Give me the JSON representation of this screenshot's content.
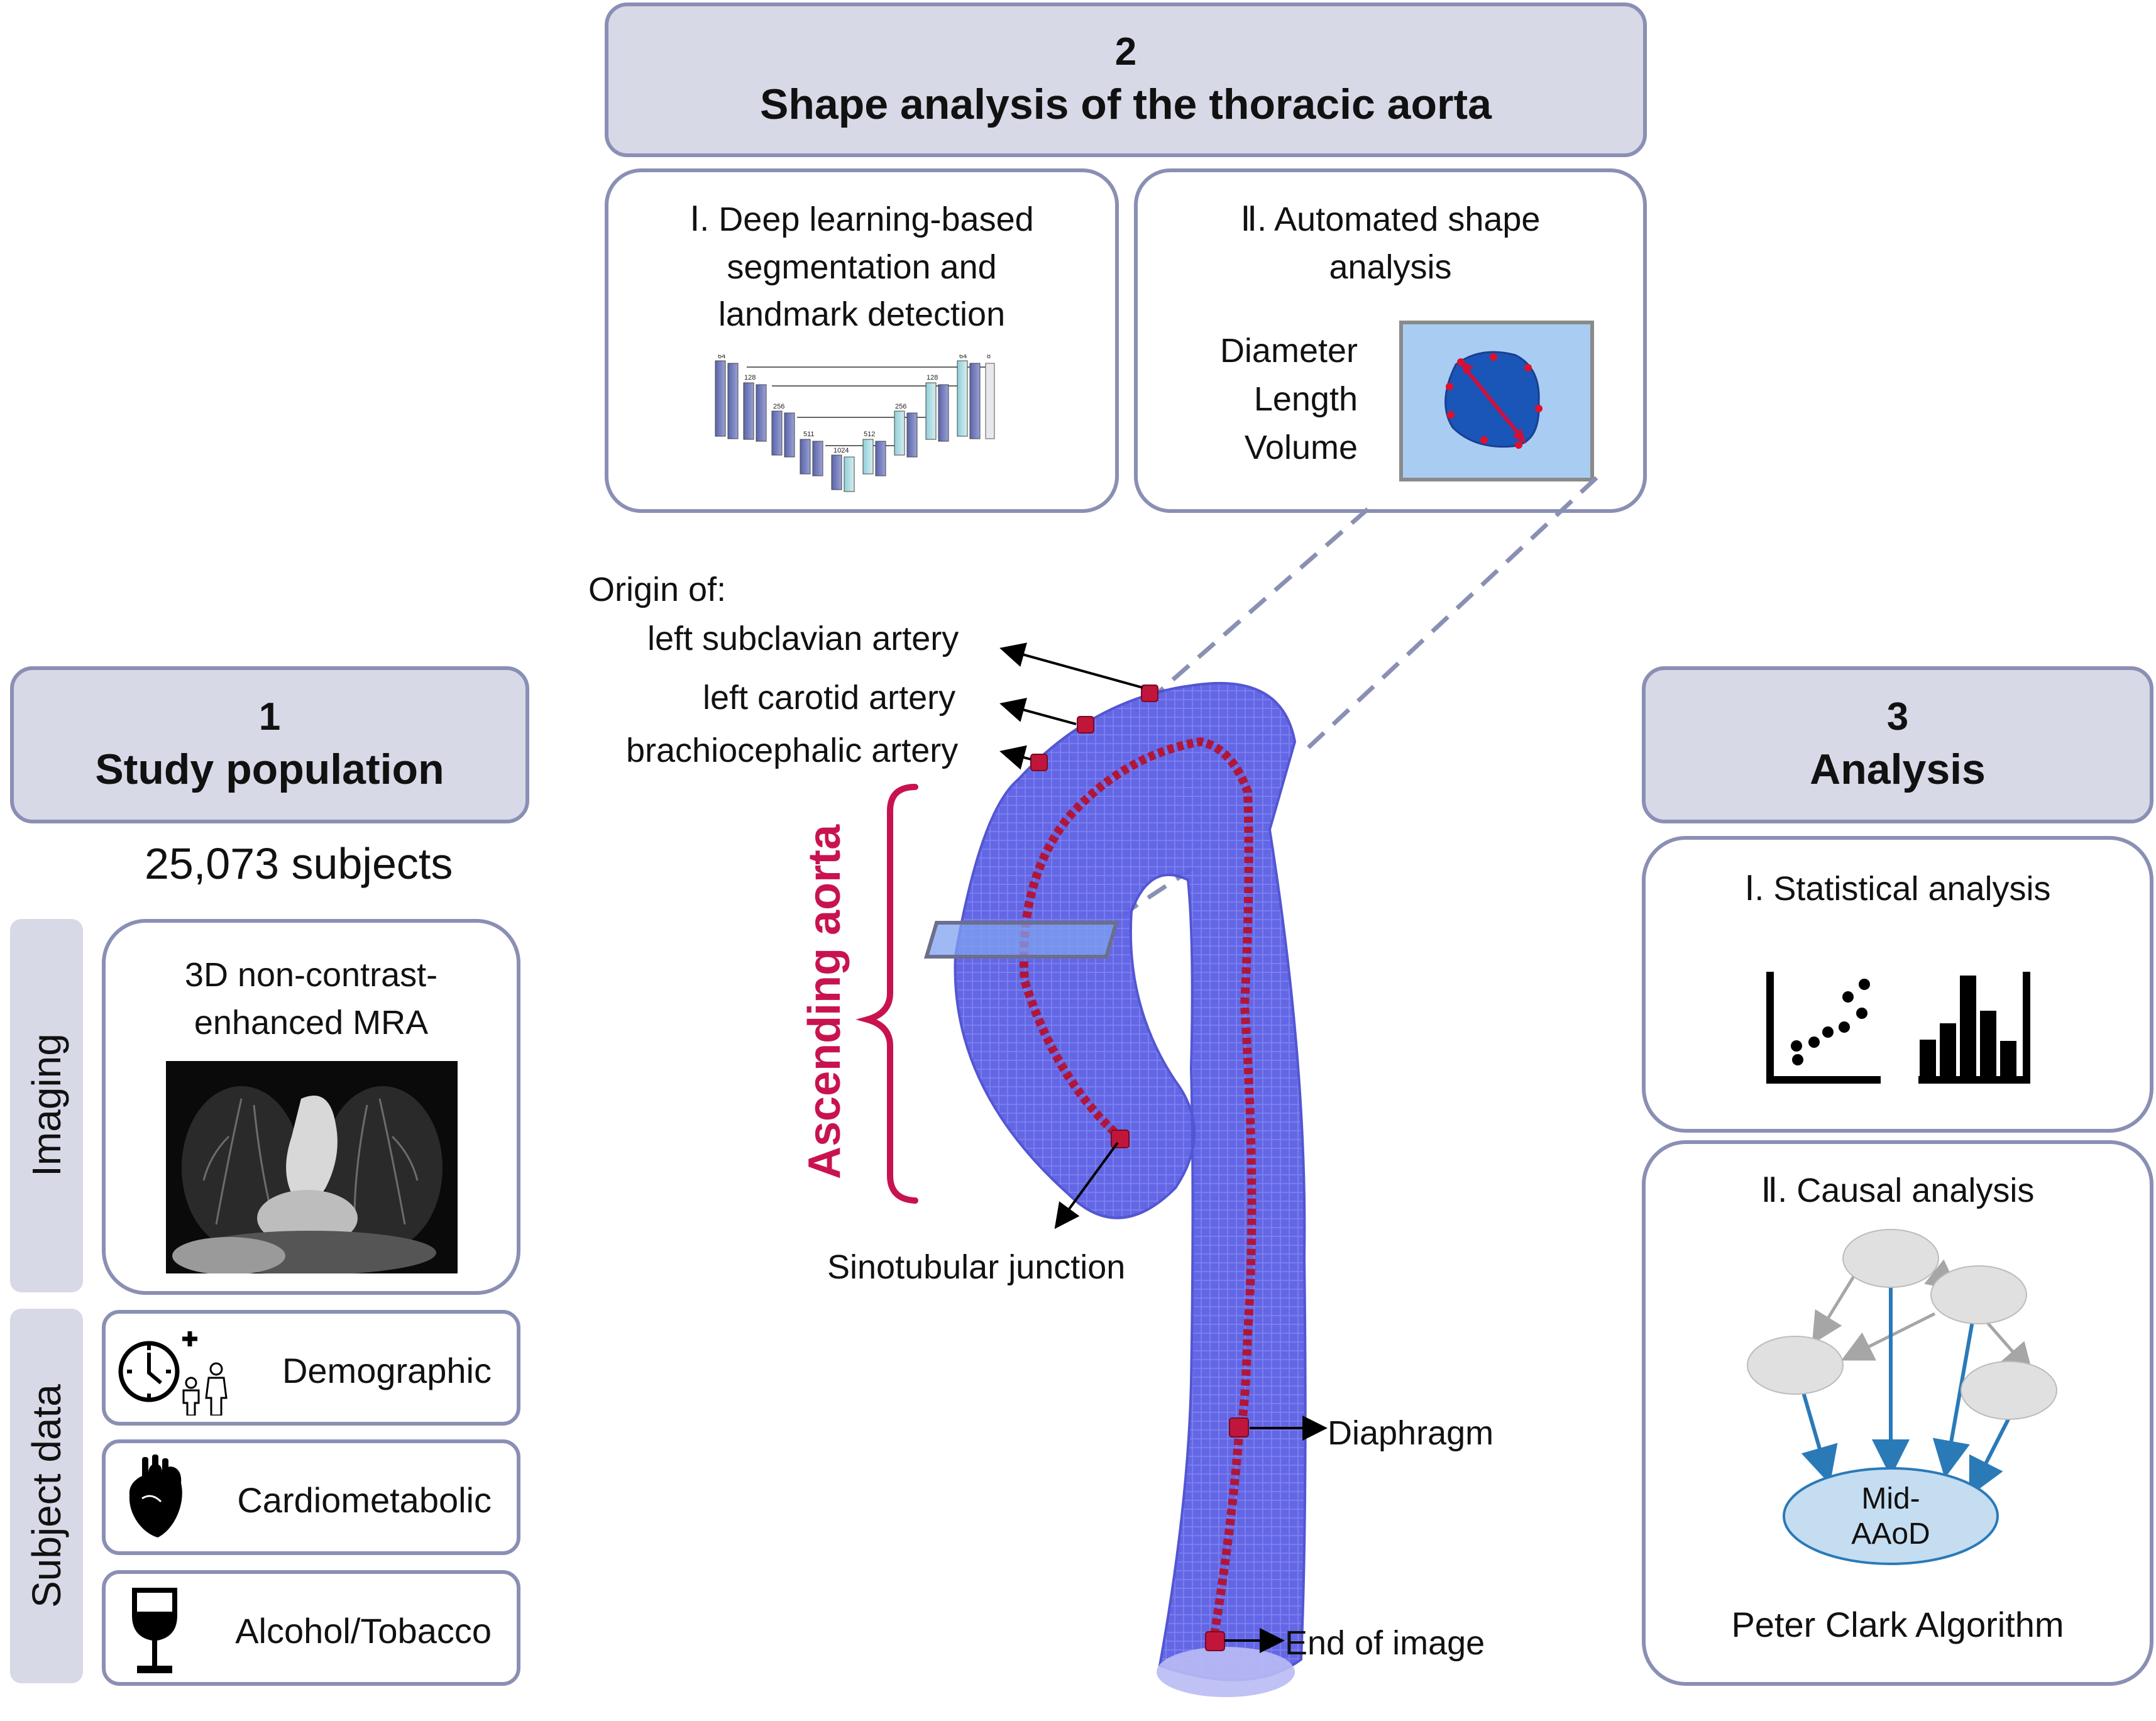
{
  "step2": {
    "number": "2",
    "title": "Shape analysis of the thoracic aorta"
  },
  "step2a": {
    "title_l1": "Ⅰ. Deep learning-based",
    "title_l2": "segmentation and",
    "title_l3": "landmark detection",
    "unet_labels": [
      "64",
      "128",
      "256",
      "511",
      "1024",
      "512",
      "256",
      "128",
      "64",
      "8"
    ]
  },
  "step2b": {
    "title_l1": "Ⅱ. Automated shape",
    "title_l2": "analysis",
    "measures": [
      "Diameter",
      "Length",
      "Volume"
    ]
  },
  "step1": {
    "number": "1",
    "title": "Study population",
    "subjects": "25,073 subjects"
  },
  "imaging": {
    "side_label": "Imaging",
    "title_l1": "3D non-contrast-",
    "title_l2": "enhanced MRA"
  },
  "subject_data": {
    "side_label": "Subject data",
    "items": [
      {
        "label": "Demographic",
        "icon": "clock-people-icon"
      },
      {
        "label": "Cardiometabolic",
        "icon": "heart-icon"
      },
      {
        "label": "Alcohol/Tobacco",
        "icon": "wine-glass-icon"
      }
    ]
  },
  "step3": {
    "number": "3",
    "title": "Analysis",
    "stat_title": "Ⅰ. Statistical analysis",
    "causal_title": "Ⅱ. Causal analysis",
    "node_label_l1": "Mid-",
    "node_label_l2": "AAoD",
    "algorithm": "Peter Clark Algorithm"
  },
  "aorta": {
    "origin_of": "Origin of:",
    "landmarks": [
      "left subclavian artery",
      "left carotid artery",
      "brachiocephalic artery",
      "Sinotubular junction",
      "Diaphragm",
      "End of image"
    ],
    "ascending_label": "Ascending aorta"
  },
  "colors": {
    "border": "#8a8fb4",
    "header_fill": "#d7d9e7",
    "aorta": "#5a5ee6",
    "centerline": "#b0163a",
    "ascending": "#c8134e",
    "graph_blue": "#2a7ab8"
  }
}
